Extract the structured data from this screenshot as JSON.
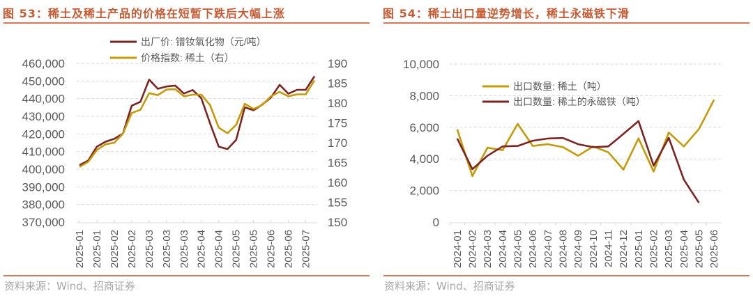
{
  "colors": {
    "title": "#c55a33",
    "red_series": "#7b2422",
    "gold_series": "#c49a06",
    "grid": "#d9d9d9",
    "tick_text": "#595959"
  },
  "chart_data": [
    {
      "type": "line",
      "title": "图 53：稀土及稀土产品的价格在短暂下跌后大幅上涨",
      "source": "资料来源：Wind、招商证券",
      "x_tick_labels": [
        "2025-01",
        "2025-01",
        "2025-02",
        "2025-02",
        "2025-03",
        "2025-03",
        "2025-03",
        "2025-04",
        "2025-04",
        "2025-05",
        "2025-05",
        "2025-06",
        "2025-06",
        "2025-07"
      ],
      "left_axis": {
        "ylim": [
          370000,
          460000
        ],
        "ticks": [
          "370,000",
          "380,000",
          "390,000",
          "400,000",
          "410,000",
          "420,000",
          "430,000",
          "440,000",
          "450,000",
          "460,000"
        ]
      },
      "right_axis": {
        "ylim": [
          150,
          190
        ],
        "ticks": [
          "150",
          "155",
          "160",
          "165",
          "170",
          "175",
          "180",
          "185",
          "190"
        ]
      },
      "grid": true,
      "legend_placement": "top",
      "series": [
        {
          "name": "出厂价: 镨钕氧化物（元/吨）",
          "axis": "left",
          "color": "#7b2422",
          "values": [
            402300,
            404900,
            412800,
            415600,
            417200,
            420200,
            436000,
            438200,
            450800,
            445600,
            446900,
            447400,
            442900,
            444900,
            440300,
            426100,
            412800,
            411400,
            416600,
            435100,
            433400,
            436600,
            440600,
            447800,
            442800,
            445000,
            445000,
            452700
          ]
        },
        {
          "name": "价格指数: 稀土（右）",
          "axis": "right",
          "color": "#c49a06",
          "values": [
            163.9,
            165.2,
            168.2,
            169.6,
            170.0,
            172.3,
            177.5,
            178.3,
            182.5,
            182.0,
            183.4,
            183.5,
            181.7,
            182.1,
            182.1,
            179.5,
            173.8,
            172.4,
            174.5,
            179.8,
            178.5,
            179.5,
            181.7,
            182.8,
            181.7,
            182.2,
            182.2,
            185.7
          ]
        }
      ]
    },
    {
      "type": "line",
      "title": "图 54：稀土出口量逆势增长，稀土永磁铁下滑",
      "source": "资料来源：Wind、招商证券",
      "x_tick_labels": [
        "2024-01",
        "2024-02",
        "2024-03",
        "2024-04",
        "2024-05",
        "2024-06",
        "2024-07",
        "2024-08",
        "2024-09",
        "2024-10",
        "2024-11",
        "2024-12",
        "2025-01",
        "2025-02",
        "2025-03",
        "2025-04",
        "2025-05",
        "2025-06"
      ],
      "left_axis": {
        "ylim": [
          0,
          10000
        ],
        "ticks": [
          "0",
          "2,000",
          "4,000",
          "6,000",
          "8,000",
          "10,000"
        ]
      },
      "grid": true,
      "legend_placement": "top-center",
      "series": [
        {
          "name": "出口数量: 稀土（吨）",
          "axis": "left",
          "color": "#c49a06",
          "values": [
            5870,
            2910,
            4710,
            4550,
            6210,
            4820,
            4930,
            4740,
            4200,
            4790,
            4420,
            3320,
            5300,
            3200,
            5670,
            4790,
            5890,
            7750
          ]
        },
        {
          "name": "出口数量: 稀土的永磁铁（吨）",
          "axis": "left",
          "color": "#7b2422",
          "values": [
            5290,
            3350,
            4200,
            4790,
            4820,
            5150,
            5290,
            5320,
            4930,
            4740,
            4790,
            5580,
            6390,
            3570,
            5330,
            2690,
            1220,
            null
          ]
        }
      ]
    }
  ]
}
